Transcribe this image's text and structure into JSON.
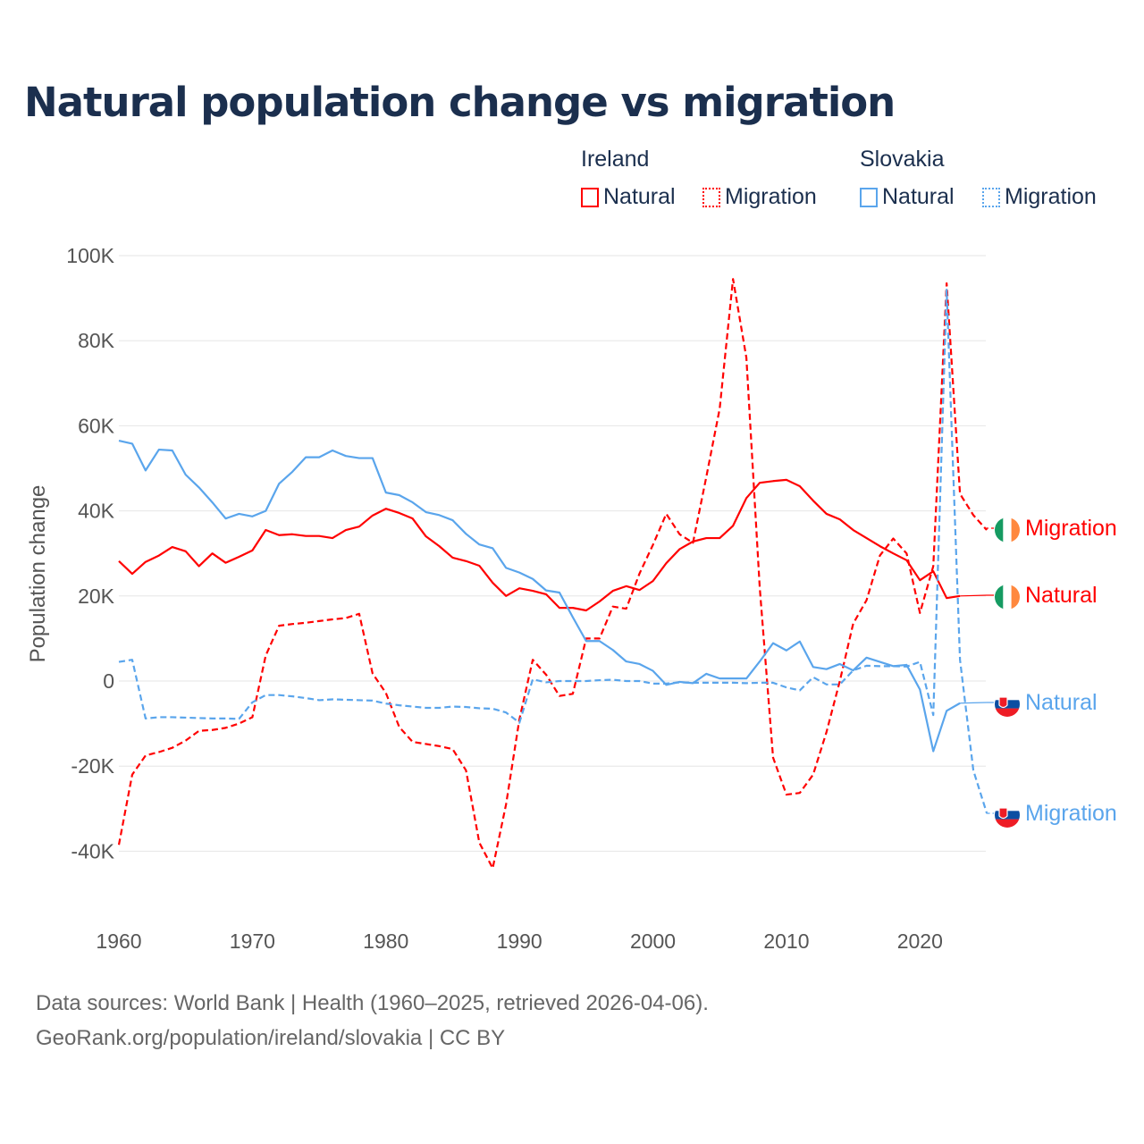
{
  "title": "Natural population change vs migration",
  "legend": {
    "groups": [
      {
        "name": "Ireland",
        "items": [
          "Natural",
          "Migration"
        ]
      },
      {
        "name": "Slovakia",
        "items": [
          "Natural",
          "Migration"
        ]
      }
    ]
  },
  "colors": {
    "ireland": "#ff0000",
    "slovakia": "#5aa5ec"
  },
  "footer": {
    "line1": "Data sources: World Bank | Health (1960–2025, retrieved 2026-04-06).",
    "line2": "GeoRank.org/population/ireland/slovakia | CC BY"
  },
  "chart_data": {
    "type": "line",
    "title": "Natural population change vs migration",
    "xlabel": "",
    "ylabel": "Population change",
    "xlim": [
      1960,
      2025
    ],
    "ylim": [
      -50000,
      100000
    ],
    "xticks": [
      "1960",
      "1970",
      "1980",
      "1990",
      "2000",
      "2010",
      "2020"
    ],
    "yticks": [
      "100K",
      "80K",
      "60K",
      "40K",
      "20K",
      "0",
      "-20K",
      "-40K"
    ],
    "ytick_values": [
      100000,
      80000,
      60000,
      40000,
      20000,
      0,
      -20000,
      -40000
    ],
    "grid": true,
    "series": [
      {
        "name": "Ireland Natural",
        "country": "Ireland",
        "kind": "Natural",
        "label": "Natural",
        "color": "#ff0000",
        "dashed": false,
        "start": 1960,
        "values": [
          28.2,
          25.2,
          28,
          29.5,
          31.5,
          30.5,
          27,
          30,
          27.8,
          29.2,
          30.7,
          35.5,
          34.3,
          34.5,
          34.1,
          34.1,
          33.6,
          35.5,
          36.3,
          38.9,
          40.5,
          39.5,
          38.2,
          34,
          31.7,
          29,
          28.2,
          27.1,
          23.1,
          20,
          21.8,
          21.2,
          20.4,
          17.2,
          17.2,
          16.6,
          18.7,
          21.2,
          22.3,
          21.4,
          23.5,
          27.7,
          31,
          32.8,
          33.6,
          33.6,
          36.5,
          43,
          46.6,
          47,
          47.3,
          45.8,
          42.4,
          39.3,
          38,
          35.5,
          33.6,
          31.7,
          30,
          28.4,
          23.7,
          25.8,
          19.5,
          20
        ]
      },
      {
        "name": "Ireland Migration",
        "country": "Ireland",
        "kind": "Migration",
        "label": "Migration",
        "color": "#ff0000",
        "dashed": true,
        "start": 1960,
        "values": [
          -38.5,
          -22,
          -17.5,
          -16.7,
          -15.7,
          -14,
          -11.7,
          -11.5,
          -11,
          -10,
          -8.5,
          6,
          13,
          13.4,
          13.7,
          14.1,
          14.5,
          14.8,
          15.8,
          1.8,
          -2.8,
          -10.8,
          -14.3,
          -14.8,
          -15.3,
          -16,
          -21,
          -38,
          -44,
          -29,
          -9,
          5,
          1.5,
          -3.5,
          -3,
          10,
          10,
          17.5,
          17,
          25.3,
          32,
          39.3,
          34.5,
          32.5,
          48,
          64,
          94.5,
          76,
          22,
          -18,
          -26.7,
          -26.3,
          -22,
          -12,
          0,
          13.5,
          19,
          29.5,
          33.5,
          30,
          16,
          27,
          93.5,
          44,
          39,
          35.5
        ]
      },
      {
        "name": "Slovakia Natural",
        "country": "Slovakia",
        "kind": "Natural",
        "label": "Natural",
        "color": "#5aa5ec",
        "dashed": false,
        "start": 1960,
        "values": [
          56.5,
          55.8,
          49.5,
          54.4,
          54.2,
          48.5,
          45.5,
          42,
          38.2,
          39.3,
          38.7,
          40,
          46.4,
          49.2,
          52.6,
          52.6,
          54.2,
          52.9,
          52.4,
          52.4,
          44.3,
          43.7,
          42,
          39.7,
          39,
          37.8,
          34.6,
          32.1,
          31.2,
          26.6,
          25.5,
          24,
          21.3,
          20.8,
          15,
          9.4,
          9.4,
          7.3,
          4.6,
          4,
          2.4,
          -0.9,
          -0.2,
          -0.5,
          1.7,
          0.6,
          0.6,
          0.6,
          4.6,
          8.9,
          7.2,
          9.3,
          3.3,
          2.8,
          4,
          2.5,
          5.5,
          4.5,
          3.5,
          3.8,
          -2,
          -16.5,
          -7,
          -5.2
        ]
      },
      {
        "name": "Slovakia Migration",
        "country": "Slovakia",
        "kind": "Migration",
        "label": "Migration",
        "color": "#5aa5ec",
        "dashed": true,
        "start": 1960,
        "values": [
          4.5,
          5,
          -8.8,
          -8.5,
          -8.5,
          -8.6,
          -8.7,
          -8.8,
          -8.8,
          -8.9,
          -5,
          -3.3,
          -3.3,
          -3.6,
          -4,
          -4.5,
          -4.3,
          -4.4,
          -4.5,
          -4.6,
          -5.3,
          -5.7,
          -6,
          -6.3,
          -6.3,
          -6,
          -6.1,
          -6.4,
          -6.5,
          -7.4,
          -9.8,
          0.4,
          -0.3,
          0,
          0,
          0,
          0.2,
          0.3,
          0,
          0,
          -0.6,
          -0.6,
          -0.3,
          -0.4,
          -0.4,
          -0.4,
          -0.4,
          -0.5,
          -0.4,
          -0.4,
          -1.5,
          -2.2,
          0.9,
          -0.8,
          -0.8,
          2.5,
          3.6,
          3.5,
          3.5,
          3.4,
          4.5,
          -8,
          92,
          5,
          -21,
          -31
        ]
      }
    ],
    "value_unit": "thousands"
  }
}
